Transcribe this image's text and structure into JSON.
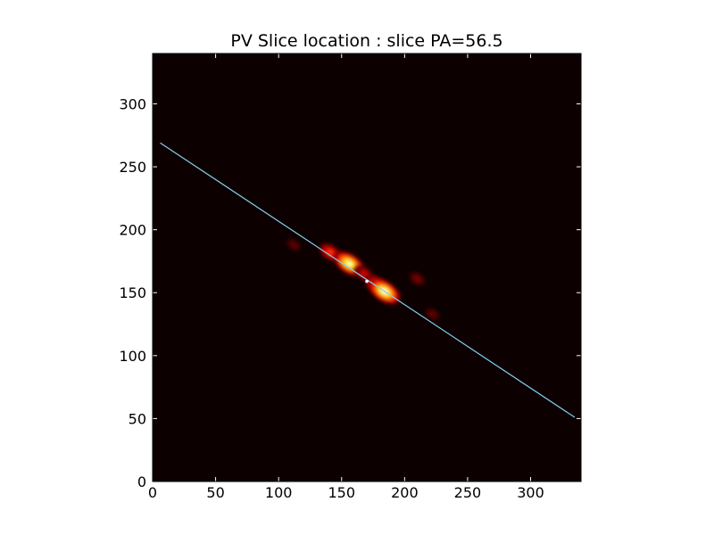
{
  "chart_data": {
    "type": "heatmap",
    "title": "PV Slice location : slice PA=56.5",
    "xlabel": "",
    "ylabel": "",
    "xlim": [
      0,
      340
    ],
    "ylim": [
      0,
      340
    ],
    "xticks": [
      "0",
      "50",
      "100",
      "150",
      "200",
      "250",
      "300"
    ],
    "yticks": [
      "0",
      "50",
      "100",
      "150",
      "200",
      "250",
      "300"
    ],
    "colormap": "hot",
    "background_color": "#0c0000",
    "grid": false,
    "emission_blobs": [
      {
        "x": 112,
        "y": 188,
        "peak": 0.15
      },
      {
        "x": 141,
        "y": 182,
        "peak": 0.5
      },
      {
        "x": 156,
        "y": 173,
        "peak": 0.95
      },
      {
        "x": 168,
        "y": 165,
        "peak": 0.35
      },
      {
        "x": 178,
        "y": 156,
        "peak": 0.6
      },
      {
        "x": 184,
        "y": 151,
        "peak": 1.0
      },
      {
        "x": 210,
        "y": 161,
        "peak": 0.2
      },
      {
        "x": 222,
        "y": 133,
        "peak": 0.15
      }
    ],
    "slice_line": {
      "color": "#87ceeb",
      "x": [
        6,
        335
      ],
      "y": [
        269,
        51
      ]
    },
    "center_marker": {
      "x": 170,
      "y": 159,
      "color": "#ffffff"
    }
  }
}
